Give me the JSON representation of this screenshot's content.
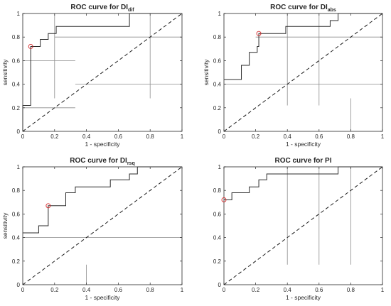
{
  "chart_data": [
    {
      "type": "line",
      "title": "ROC curve for DI",
      "title_subscript": "dif",
      "xlabel": "1 -  specificity",
      "ylabel": "sensitivity",
      "xlim": [
        0,
        1
      ],
      "ylim": [
        0,
        1
      ],
      "xticks": [
        "0",
        "0.2",
        "0.4",
        "0.6",
        "0.8",
        "1"
      ],
      "yticks": [
        "0",
        "0.2",
        "0.4",
        "0.6",
        "0.8",
        "1"
      ],
      "roc_curve": [
        [
          0,
          0
        ],
        [
          0,
          0.22
        ],
        [
          0.05,
          0.22
        ],
        [
          0.05,
          0.72
        ],
        [
          0.11,
          0.72
        ],
        [
          0.11,
          0.78
        ],
        [
          0.16,
          0.78
        ],
        [
          0.16,
          0.83
        ],
        [
          0.21,
          0.83
        ],
        [
          0.21,
          0.89
        ],
        [
          0.67,
          0.89
        ],
        [
          0.67,
          1
        ],
        [
          1,
          1
        ]
      ],
      "optimal_point": [
        0.05,
        0.72
      ],
      "threshold_lines": [
        {
          "orientation": "vertical",
          "position": 0.2,
          "from": 0.28,
          "to": 1
        },
        {
          "orientation": "vertical",
          "position": 0.8,
          "from": 0.28,
          "to": 1
        },
        {
          "orientation": "horizontal",
          "position": 0.8,
          "from": 0.2,
          "to": 1
        },
        {
          "orientation": "horizontal",
          "position": 0.6,
          "from": 0,
          "to": 0.33
        },
        {
          "orientation": "horizontal",
          "position": 0.4,
          "from": 0.33,
          "to": 1
        },
        {
          "orientation": "horizontal",
          "position": 0.2,
          "from": 0,
          "to": 0.33
        }
      ]
    },
    {
      "type": "line",
      "title": "ROC curve for DI",
      "title_subscript": "abs",
      "xlabel": "1 -  specificity",
      "ylabel": "sensitivity",
      "xlim": [
        0,
        1
      ],
      "ylim": [
        0,
        1
      ],
      "xticks": [
        "0",
        "0.2",
        "0.4",
        "0.6",
        "0.8",
        "1"
      ],
      "yticks": [
        "0",
        "0.2",
        "0.4",
        "0.6",
        "0.8",
        "1"
      ],
      "roc_curve": [
        [
          0,
          0.44
        ],
        [
          0.11,
          0.44
        ],
        [
          0.11,
          0.56
        ],
        [
          0.16,
          0.56
        ],
        [
          0.16,
          0.67
        ],
        [
          0.21,
          0.67
        ],
        [
          0.21,
          0.72
        ],
        [
          0.22,
          0.72
        ],
        [
          0.22,
          0.83
        ],
        [
          0.39,
          0.83
        ],
        [
          0.39,
          0.89
        ],
        [
          0.67,
          0.89
        ],
        [
          0.67,
          0.94
        ],
        [
          0.72,
          0.94
        ],
        [
          0.72,
          1
        ],
        [
          1,
          1
        ]
      ],
      "optimal_point": [
        0.22,
        0.83
      ],
      "threshold_lines": [
        {
          "orientation": "vertical",
          "position": 0.4,
          "from": 0.22,
          "to": 1
        },
        {
          "orientation": "vertical",
          "position": 0.6,
          "from": 0.22,
          "to": 1
        },
        {
          "orientation": "vertical",
          "position": 0.8,
          "from": 0,
          "to": 0.28
        },
        {
          "orientation": "horizontal",
          "position": 0.8,
          "from": 0.2,
          "to": 1
        },
        {
          "orientation": "horizontal",
          "position": 0.4,
          "from": 0,
          "to": 1
        }
      ]
    },
    {
      "type": "line",
      "title": "ROC curve for DI",
      "title_subscript": "rsq",
      "xlabel": "1 -  specificity",
      "ylabel": "sensitivity",
      "xlim": [
        0,
        1
      ],
      "ylim": [
        0,
        1
      ],
      "xticks": [
        "0",
        "0.2",
        "0.4",
        "0.6",
        "0.8",
        "1"
      ],
      "yticks": [
        "0",
        "0.2",
        "0.4",
        "0.6",
        "0.8",
        "1"
      ],
      "roc_curve": [
        [
          0,
          0.44
        ],
        [
          0.1,
          0.44
        ],
        [
          0.1,
          0.5
        ],
        [
          0.16,
          0.5
        ],
        [
          0.16,
          0.67
        ],
        [
          0.27,
          0.67
        ],
        [
          0.27,
          0.78
        ],
        [
          0.33,
          0.78
        ],
        [
          0.33,
          0.83
        ],
        [
          0.55,
          0.83
        ],
        [
          0.55,
          0.89
        ],
        [
          0.67,
          0.89
        ],
        [
          0.67,
          0.94
        ],
        [
          0.72,
          0.94
        ],
        [
          0.72,
          1
        ],
        [
          1,
          1
        ]
      ],
      "optimal_point": [
        0.16,
        0.67
      ],
      "threshold_lines": [
        {
          "orientation": "horizontal",
          "position": 0.4,
          "from": 0,
          "to": 1
        },
        {
          "orientation": "vertical",
          "position": 0.4,
          "from": 0,
          "to": 0.17
        }
      ]
    },
    {
      "type": "line",
      "title": "ROC curve for PI",
      "title_subscript": "",
      "xlabel": "1 -  specificity",
      "ylabel": "",
      "xlim": [
        0,
        1
      ],
      "ylim": [
        0,
        1
      ],
      "xticks": [
        "0",
        "0.2",
        "0.4",
        "0.6",
        "0.8",
        "1"
      ],
      "yticks": [
        "0",
        "0.2",
        "0.4",
        "0.6",
        "0.8",
        "1"
      ],
      "roc_curve": [
        [
          0,
          0.72
        ],
        [
          0.05,
          0.72
        ],
        [
          0.05,
          0.78
        ],
        [
          0.16,
          0.78
        ],
        [
          0.16,
          0.83
        ],
        [
          0.22,
          0.83
        ],
        [
          0.22,
          0.89
        ],
        [
          0.27,
          0.89
        ],
        [
          0.27,
          0.94
        ],
        [
          0.72,
          0.94
        ],
        [
          0.72,
          1
        ],
        [
          1,
          1
        ]
      ],
      "optimal_point": [
        0,
        0.72
      ],
      "threshold_lines": [
        {
          "orientation": "vertical",
          "position": 0.4,
          "from": 0.17,
          "to": 1
        },
        {
          "orientation": "vertical",
          "position": 0.6,
          "from": 0.17,
          "to": 1
        },
        {
          "orientation": "vertical",
          "position": 0.8,
          "from": 0.17,
          "to": 1
        }
      ]
    }
  ],
  "colors": {
    "axes": "#262626",
    "roc_curve": "#2b2b2b",
    "diagonal": "#1a1a1a",
    "threshold_lines": "#8c8c8c",
    "optimal_marker": "#d62728"
  }
}
